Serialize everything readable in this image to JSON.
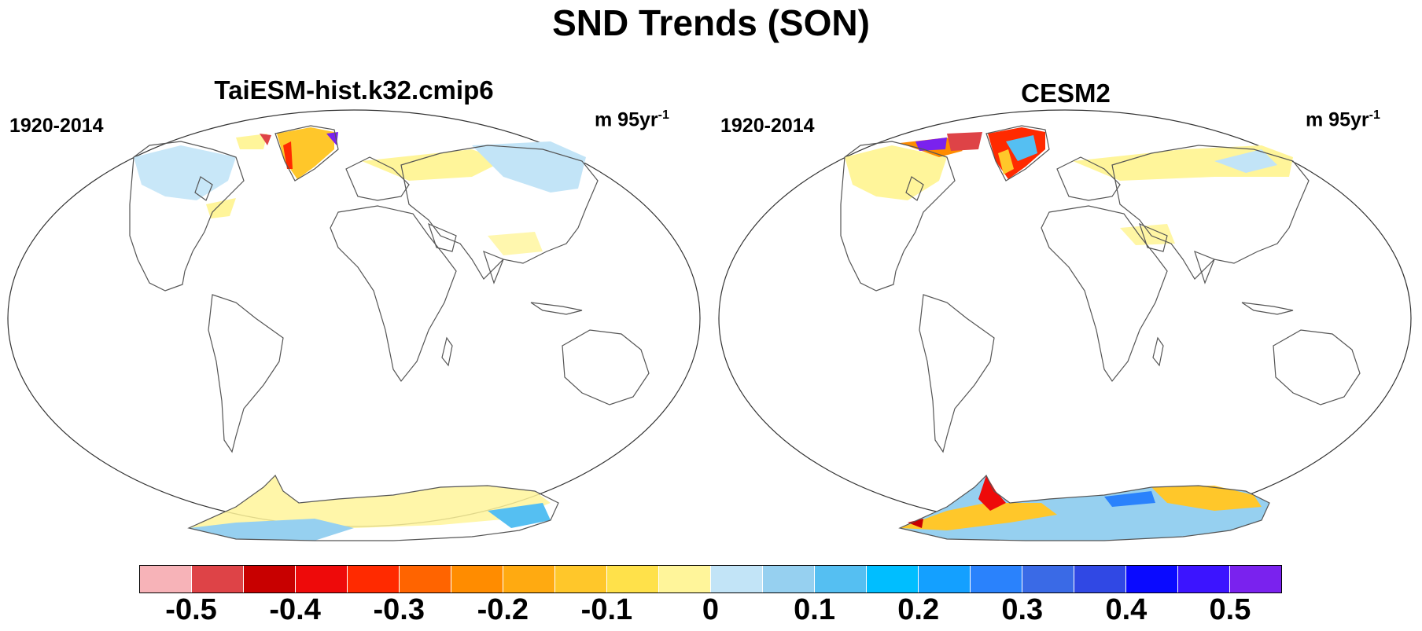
{
  "title": "SND Trends (SON)",
  "panels": [
    {
      "title": "TaiESM-hist.k32.cmip6",
      "period": "1920-2014",
      "units_base": "m 95yr",
      "units_exp": "-1"
    },
    {
      "title": "CESM2",
      "period": "1920-2014",
      "units_base": "m 95yr",
      "units_exp": "-1"
    }
  ],
  "colorbar": {
    "colors": [
      "#f7b3b8",
      "#de4347",
      "#c80000",
      "#ee0a0a",
      "#ff2a00",
      "#ff6400",
      "#ff8c00",
      "#ffaa11",
      "#ffc72a",
      "#ffe14a",
      "#fff59a",
      "#c2e4f7",
      "#96d0f0",
      "#55bff2",
      "#00beff",
      "#14a0ff",
      "#2a82fc",
      "#3a6ae6",
      "#3048e4",
      "#0a0aff",
      "#3c14ff",
      "#7a22ee"
    ],
    "labels": [
      "-0.5",
      "-0.4",
      "-0.3",
      "-0.2",
      "-0.1",
      "0",
      "0.1",
      "0.2",
      "0.3",
      "0.4",
      "0.5"
    ]
  }
}
